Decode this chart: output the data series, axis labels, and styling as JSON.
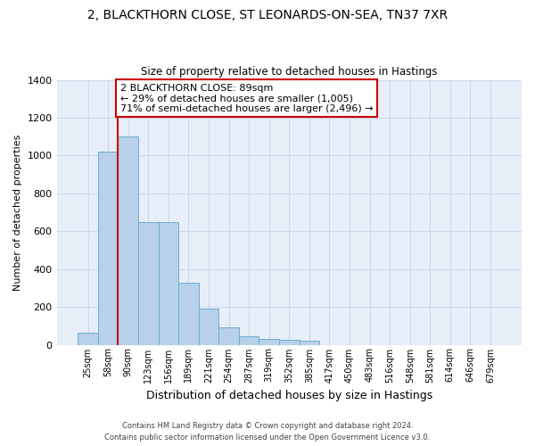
{
  "title1": "2, BLACKTHORN CLOSE, ST LEONARDS-ON-SEA, TN37 7XR",
  "title2": "Size of property relative to detached houses in Hastings",
  "xlabel": "Distribution of detached houses by size in Hastings",
  "ylabel": "Number of detached properties",
  "categories": [
    "25sqm",
    "58sqm",
    "90sqm",
    "123sqm",
    "156sqm",
    "189sqm",
    "221sqm",
    "254sqm",
    "287sqm",
    "319sqm",
    "352sqm",
    "385sqm",
    "417sqm",
    "450sqm",
    "483sqm",
    "516sqm",
    "548sqm",
    "581sqm",
    "614sqm",
    "646sqm",
    "679sqm"
  ],
  "values": [
    65,
    1020,
    1100,
    650,
    650,
    330,
    190,
    90,
    47,
    30,
    25,
    20,
    0,
    0,
    0,
    0,
    0,
    0,
    0,
    0,
    0
  ],
  "bar_color": "#b8d0ea",
  "bar_edge_color": "#6aaed6",
  "grid_color": "#c8d8ec",
  "background_color": "#e8eef8",
  "vline_color": "#cc0000",
  "annotation_line1": "2 BLACKTHORN CLOSE: 89sqm",
  "annotation_line2": "← 29% of detached houses are smaller (1,005)",
  "annotation_line3": "71% of semi-detached houses are larger (2,496) →",
  "annotation_box_color": "#ffffff",
  "annotation_box_edge": "#cc0000",
  "footer1": "Contains HM Land Registry data © Crown copyright and database right 2024.",
  "footer2": "Contains public sector information licensed under the Open Government Licence v3.0.",
  "ylim": [
    0,
    1400
  ],
  "yticks": [
    0,
    200,
    400,
    600,
    800,
    1000,
    1200,
    1400
  ]
}
